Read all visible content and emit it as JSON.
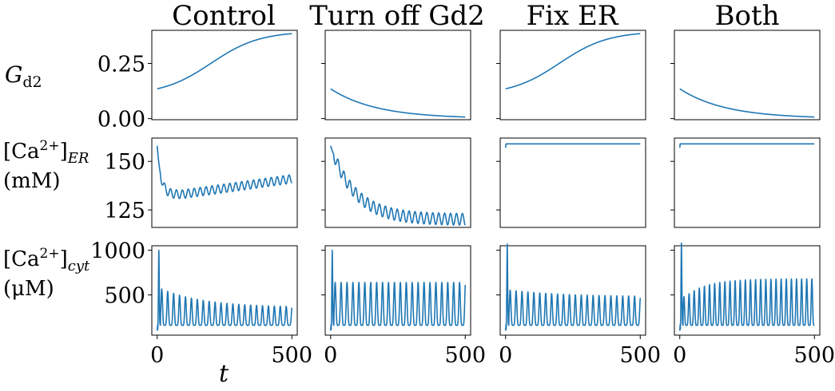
{
  "chart_data": {
    "type": "line",
    "columns": [
      {
        "key": "control",
        "title": "Control"
      },
      {
        "key": "turn_off_gd2",
        "title": "Turn off Gd2"
      },
      {
        "key": "fix_er",
        "title": "Fix ER"
      },
      {
        "key": "both",
        "title": "Both"
      }
    ],
    "rows": [
      {
        "key": "gd2",
        "label_main": "G",
        "label_sub": "d2",
        "ylim": [
          -0.005,
          0.4
        ],
        "yticks": [
          0.0,
          0.25
        ],
        "ytick_labels": [
          "0.00",
          "0.25"
        ]
      },
      {
        "key": "ca_er",
        "label_main": "[Ca",
        "label_sup": "2+",
        "label_close": "]",
        "label_sub": "ER",
        "label_unit": "(mM)",
        "ylim": [
          116,
          162
        ],
        "yticks": [
          125,
          150
        ],
        "ytick_labels": [
          "125",
          "150"
        ]
      },
      {
        "key": "ca_cyt",
        "label_main": "[Ca",
        "label_sup": "2+",
        "label_close": "]",
        "label_sub": "cyt",
        "label_unit": "(μM)",
        "ylim": [
          50,
          1050
        ],
        "yticks": [
          500,
          1000
        ],
        "ytick_labels": [
          "500",
          "1000"
        ]
      }
    ],
    "xlim": [
      -20,
      520
    ],
    "xticks": [
      0,
      500
    ],
    "xtick_labels": [
      "0",
      "500"
    ],
    "xlabel": "t",
    "series": {
      "gd2": {
        "control": {
          "kind": "sigmoid_rise",
          "y0": 0.135,
          "y1": 0.385,
          "mid": 200,
          "width": 90
        },
        "turn_off_gd2": {
          "kind": "decay",
          "y0": 0.135,
          "yinf": 0.0,
          "tau": 170
        },
        "fix_er": {
          "kind": "sigmoid_rise",
          "y0": 0.135,
          "y1": 0.385,
          "mid": 200,
          "width": 90
        },
        "both": {
          "kind": "decay",
          "y0": 0.135,
          "yinf": 0.0,
          "tau": 170
        }
      },
      "ca_er": {
        "control": {
          "kind": "er_control",
          "y0": 158,
          "ymin": 133,
          "yend": 141,
          "osc_amp": 2.2,
          "period": 22
        },
        "turn_off_gd2": {
          "kind": "er_decline",
          "y0": 158,
          "yinf": 120,
          "tau": 90,
          "osc_amp": 3.0,
          "period": 22
        },
        "fix_er": {
          "kind": "flat",
          "y0": 157,
          "value": 159
        },
        "both": {
          "kind": "flat",
          "y0": 157,
          "value": 159
        }
      },
      "ca_cyt": {
        "control": {
          "kind": "spikes",
          "base": 100,
          "peak_first": 940,
          "peak_second": 410,
          "period": 22,
          "amp_start": 430,
          "amp_end": 200,
          "amp_tau": 160
        },
        "turn_off_gd2": {
          "kind": "spikes",
          "base": 100,
          "peak_first": 940,
          "peak_second": 430,
          "period": 22,
          "amp_start": 480,
          "amp_end": 480,
          "amp_tau": 1
        },
        "fix_er": {
          "kind": "spikes",
          "base": 100,
          "peak_first": 1010,
          "peak_second": 380,
          "period": 22,
          "amp_start": 400,
          "amp_end": 320,
          "amp_tau": 200
        },
        "both": {
          "kind": "spikes_grow",
          "base": 100,
          "peak_first": 1020,
          "peak_second": 340,
          "period": 19,
          "amp_start": 320,
          "amp_end": 520,
          "amp_tau": 80
        }
      }
    }
  }
}
